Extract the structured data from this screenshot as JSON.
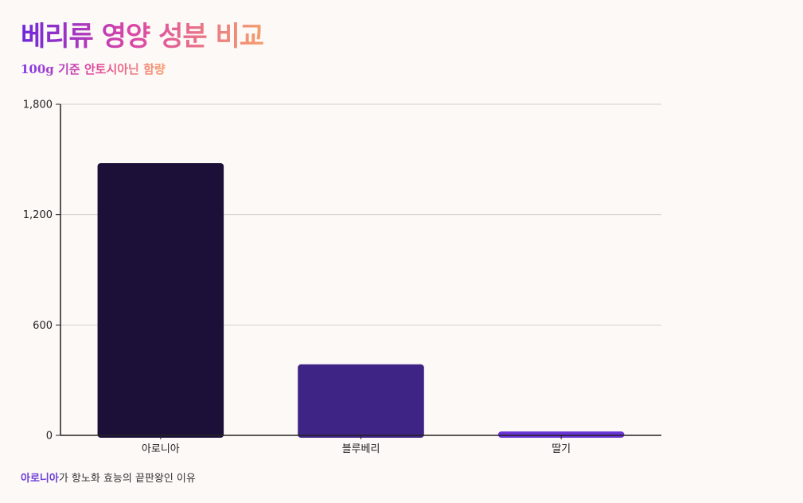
{
  "title": "베리류 영양 성분 비교",
  "subtitle_number": "100g",
  "subtitle_text": " 기준 안토시아닌 함량",
  "footnote": {
    "highlight": "아로니아",
    "rest": "가 항노화 효능의 끝판왕인 이유"
  },
  "chart_data": {
    "type": "bar",
    "title": "베리류 영양 성분 비교",
    "subtitle": "100g 기준 안토시아닌 함량",
    "xlabel": "",
    "ylabel": "",
    "categories": [
      "아로니아",
      "블루베리",
      "딸기"
    ],
    "values": [
      1480,
      386,
      21
    ],
    "ylim": [
      0,
      1800
    ],
    "yticks": [
      0,
      600,
      1200,
      1800
    ],
    "ytick_labels": [
      "0",
      "600",
      "1,200",
      "1,800"
    ],
    "grid": true,
    "legend": "none",
    "colors": [
      "#1c1039",
      "#3e2485",
      "#6a35d6"
    ]
  }
}
